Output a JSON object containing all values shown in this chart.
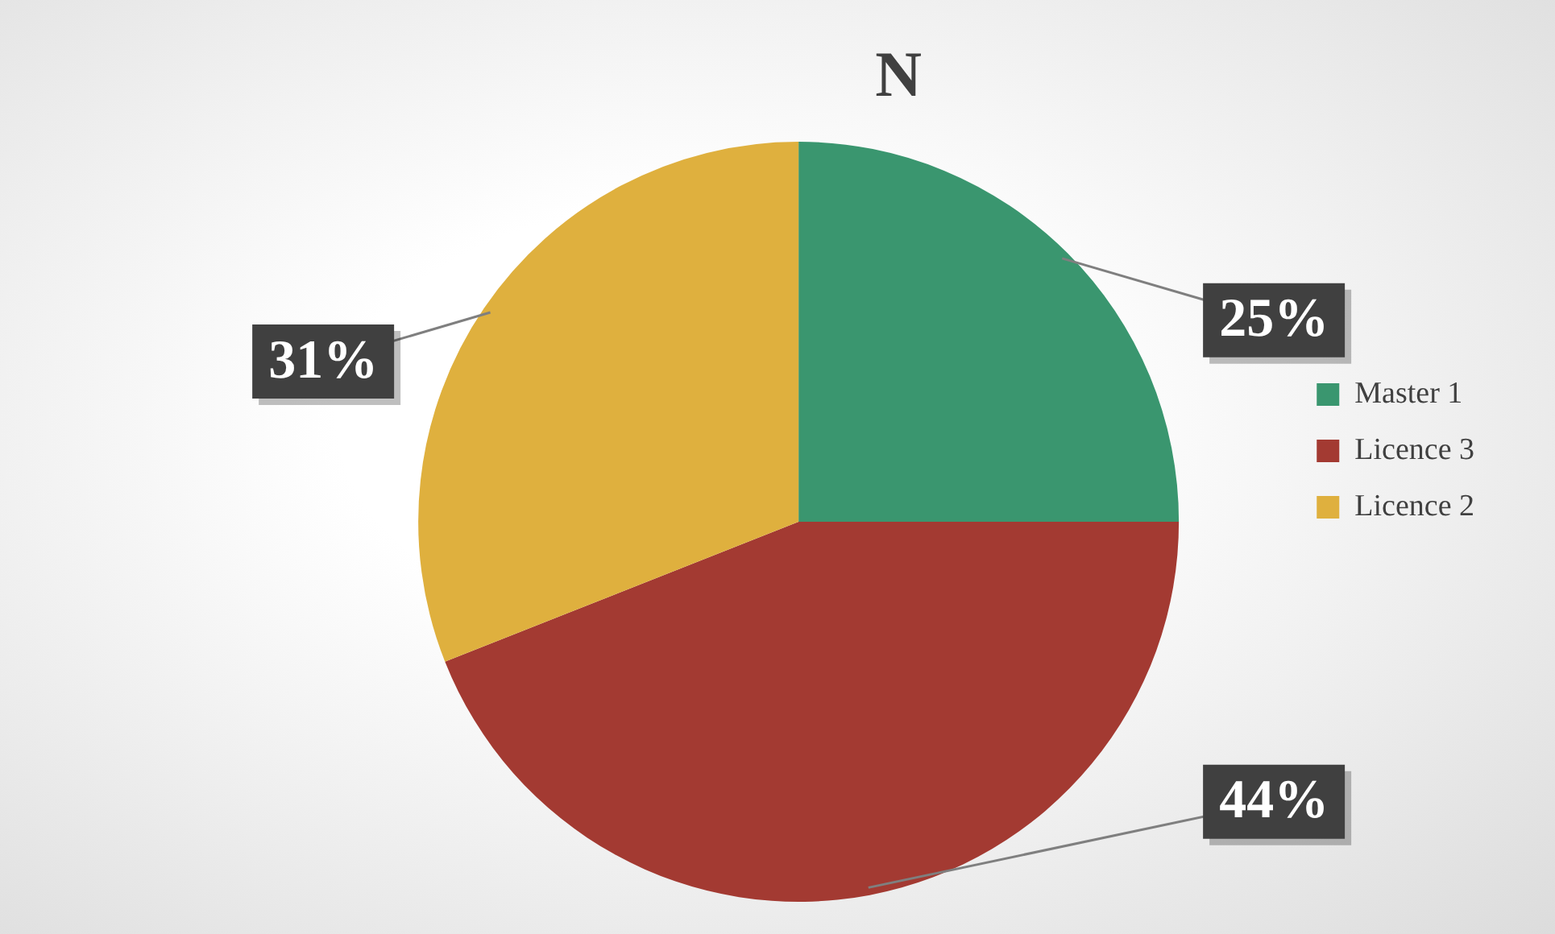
{
  "chart_data": {
    "type": "pie",
    "title": "N",
    "categories": [
      "Master 1",
      "Licence 3",
      "Licence 2"
    ],
    "values": [
      25,
      44,
      31
    ],
    "colors": [
      "#3a966f",
      "#a33a32",
      "#dfb03e"
    ],
    "value_labels": [
      "25%",
      "44%",
      "31%"
    ],
    "legend": "right"
  }
}
